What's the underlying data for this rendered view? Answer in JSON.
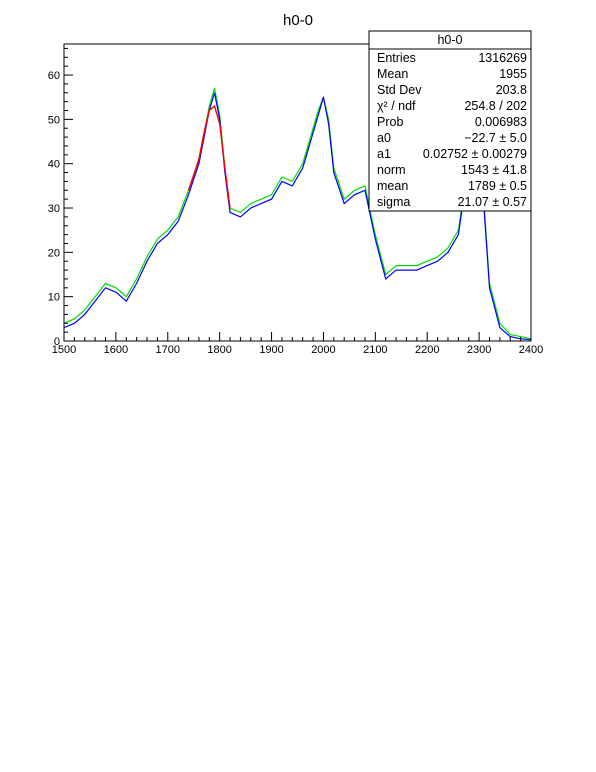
{
  "chart_data": {
    "type": "histogram",
    "title": "h0-0",
    "xlabel": "",
    "ylabel": "",
    "xlim": [
      1500,
      2400
    ],
    "ylim": [
      0,
      67
    ],
    "x_ticks": [
      "1500",
      "1600",
      "1700",
      "1800",
      "1900",
      "2000",
      "2100",
      "2200",
      "2300",
      "2400"
    ],
    "y_ticks": [
      "0",
      "10",
      "20",
      "30",
      "40",
      "50",
      "60"
    ],
    "colors": {
      "primary": "#0000ff",
      "secondary": "#00dd00",
      "fit": "#ff0000"
    },
    "series": [
      {
        "color": "#0000ff",
        "x": [
          1500,
          1520,
          1540,
          1560,
          1580,
          1600,
          1620,
          1640,
          1660,
          1680,
          1700,
          1720,
          1740,
          1760,
          1770,
          1780,
          1790,
          1800,
          1810,
          1820,
          1840,
          1860,
          1880,
          1900,
          1920,
          1940,
          1960,
          1980,
          1990,
          2000,
          2010,
          2020,
          2040,
          2060,
          2080,
          2100,
          2120,
          2140,
          2160,
          2180,
          2200,
          2220,
          2240,
          2260,
          2270,
          2280,
          2290,
          2300,
          2310,
          2320,
          2340,
          2360,
          2380,
          2400
        ],
        "values": [
          3,
          4,
          6,
          9,
          12,
          11,
          9,
          13,
          18,
          22,
          24,
          27,
          33,
          40,
          46,
          52,
          56,
          50,
          38,
          29,
          28,
          30,
          31,
          32,
          36,
          35,
          39,
          47,
          51,
          55,
          49,
          38,
          31,
          33,
          34,
          23,
          14,
          16,
          16,
          16,
          17,
          18,
          20,
          24,
          32,
          40,
          46,
          40,
          29,
          12,
          3,
          1,
          0.5,
          0.3
        ]
      },
      {
        "color": "#00dd00",
        "x": [
          1500,
          1520,
          1540,
          1560,
          1580,
          1600,
          1620,
          1640,
          1660,
          1680,
          1700,
          1720,
          1740,
          1760,
          1770,
          1780,
          1790,
          1800,
          1810,
          1820,
          1840,
          1860,
          1880,
          1900,
          1920,
          1940,
          1960,
          1980,
          1990,
          2000,
          2010,
          2020,
          2040,
          2060,
          2080,
          2100,
          2120,
          2140,
          2160,
          2180,
          2200,
          2220,
          2240,
          2260,
          2270,
          2280,
          2290,
          2300,
          2310,
          2320,
          2340,
          2360,
          2380,
          2400
        ],
        "values": [
          4,
          5,
          7,
          10,
          13,
          12,
          10,
          14,
          19,
          23,
          25,
          28,
          34,
          41,
          47,
          53,
          57,
          51,
          39,
          30,
          29,
          31,
          32,
          33,
          37,
          36,
          40,
          48,
          52,
          55,
          50,
          39,
          32,
          34,
          35,
          24,
          15,
          17,
          17,
          17,
          18,
          19,
          21,
          25,
          33,
          41,
          47,
          41,
          30,
          13,
          4,
          1.5,
          1,
          0.5
        ]
      },
      {
        "color": "#ff0000",
        "x": [
          1740,
          1760,
          1770,
          1780,
          1790,
          1800,
          1810,
          1820
        ],
        "values": [
          34,
          41,
          47,
          52,
          53,
          49,
          39,
          30
        ]
      }
    ],
    "legend": "none"
  },
  "stats": {
    "title": "h0-0",
    "rows": [
      {
        "label": "Entries",
        "value": "1316269"
      },
      {
        "label": "Mean",
        "value": "1955"
      },
      {
        "label": "Std Dev",
        "value": "203.8"
      },
      {
        "label": "χ² / ndf",
        "value": "254.8 / 202"
      },
      {
        "label": "Prob",
        "value": "0.006983"
      },
      {
        "label": "a0",
        "value": "−22.7 ± 5.0"
      },
      {
        "label": "a1",
        "value": "0.02752 ± 0.00279"
      },
      {
        "label": "norm",
        "value": "1543 ± 41.8"
      },
      {
        "label": "mean",
        "value": "1789 ± 0.5"
      },
      {
        "label": "sigma",
        "value": "21.07 ± 0.57"
      }
    ]
  }
}
